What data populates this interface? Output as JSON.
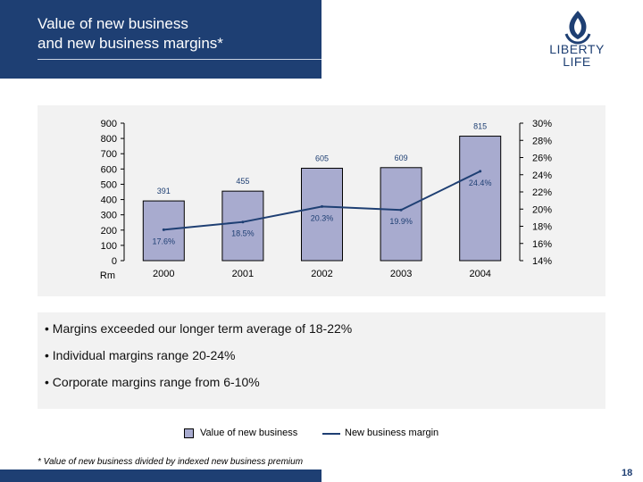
{
  "header": {
    "title": "Value of new business\nand new business margins*"
  },
  "logo": {
    "text_line1": "LIBERTY",
    "text_line2": "LIFE",
    "icon": "flame-icon",
    "color": "#1e3f73"
  },
  "chart_data": {
    "type": "bar",
    "categories": [
      "2000",
      "2001",
      "2002",
      "2003",
      "2004"
    ],
    "series": [
      {
        "name": "Value of new business",
        "type": "bar",
        "axis": "left",
        "values": [
          391,
          455,
          605,
          609,
          815
        ],
        "labels": [
          "391",
          "455",
          "605",
          "609",
          "815"
        ],
        "color": "#a8abcf"
      },
      {
        "name": "New business margin",
        "type": "line",
        "axis": "right",
        "values": [
          17.6,
          18.5,
          20.3,
          19.9,
          24.4
        ],
        "labels": [
          "17.6%",
          "18.5%",
          "20.3%",
          "19.9%",
          "24.4%"
        ],
        "color": "#1e3f73"
      }
    ],
    "y_left": {
      "label": "Rm",
      "ylim": [
        0,
        900
      ],
      "ticks": [
        "0",
        "100",
        "200",
        "300",
        "400",
        "500",
        "600",
        "700",
        "800",
        "900"
      ]
    },
    "y_right": {
      "ylim": [
        14,
        30
      ],
      "tick_values": [
        14,
        16,
        18,
        20,
        22,
        24,
        26,
        28,
        30
      ],
      "ticks": [
        "14%",
        "16%",
        "18%",
        "20%",
        "22%",
        "24%",
        "26%",
        "28%",
        "30%"
      ]
    },
    "grid": false,
    "legend": "bottom"
  },
  "bullets": [
    "Margins exceeded our longer term average of 18-22%",
    "Individual margins range 20-24%",
    "Corporate margins range from 6-10%"
  ],
  "legend": {
    "bar_label": "Value of new business",
    "line_label": "New business margin"
  },
  "footnote": "*   Value of new business divided by indexed new business premium",
  "page_number": "18"
}
